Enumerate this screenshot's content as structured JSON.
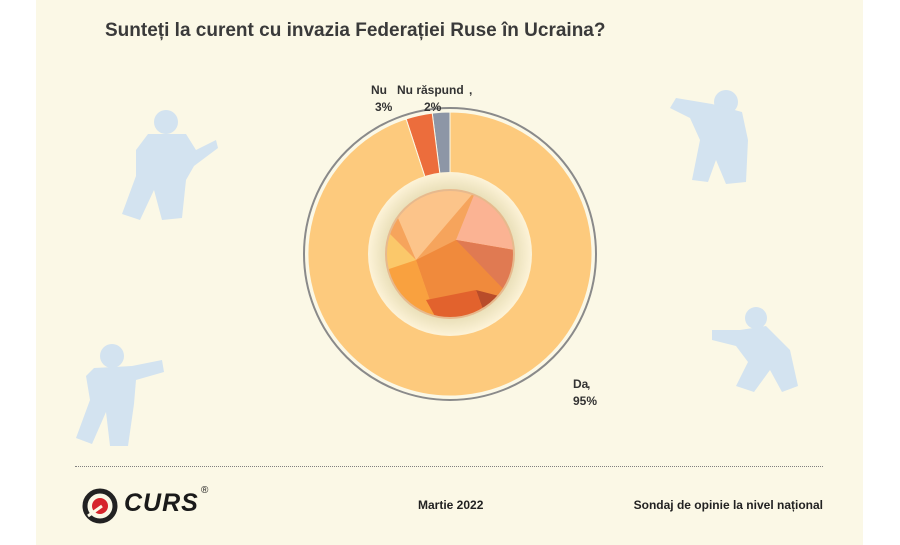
{
  "title": "Sunteți la curent cu invazia Federației Ruse în Ucraina?",
  "chart_data": {
    "type": "pie",
    "title": "Sunteți la curent cu invazia Federației Ruse în Ucraina?",
    "categories": [
      "Da",
      "Nu",
      "Nu răspund"
    ],
    "values": [
      95,
      3,
      2
    ],
    "labels": [
      "95%",
      "3%",
      "2%"
    ],
    "colors": [
      "#fdca7d",
      "#ec6d3c",
      "#8d96a6"
    ]
  },
  "colors": {
    "background": "#fbf8e6",
    "soldier": "#d3e3f0"
  },
  "footer": {
    "logo_text": "CURS",
    "logo_mark": "®",
    "date": "Martie 2022",
    "survey": "Sondaj de opinie la nivel național"
  }
}
